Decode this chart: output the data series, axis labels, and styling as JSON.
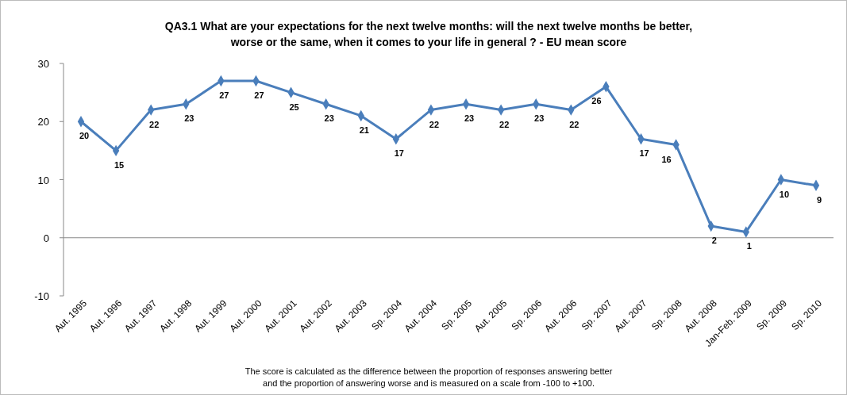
{
  "chart_data": {
    "type": "line",
    "title": "QA3.1  What are your expectations for the next twelve months: will the next twelve months be better, worse or the same, when it comes to your life in general ?  - EU mean score",
    "categories": [
      "Aut. 1995",
      "Aut. 1996",
      "Aut. 1997",
      "Aut. 1998",
      "Aut. 1999",
      "Aut. 2000",
      "Aut. 2001",
      "Aut. 2002",
      "Aut. 2003",
      "Sp. 2004",
      "Aut. 2004",
      "Sp. 2005",
      "Aut. 2005",
      "Sp. 2006",
      "Aut. 2006",
      "Sp. 2007",
      "Aut. 2007",
      "Sp. 2008",
      "Aut. 2008",
      "Jan-Feb. 2009",
      "Sp. 2009",
      "Sp. 2010"
    ],
    "series": [
      {
        "color": "#4a7ebb",
        "values": [
          20,
          15,
          22,
          23,
          27,
          27,
          25,
          23,
          21,
          17,
          22,
          23,
          22,
          23,
          22,
          26,
          17,
          16,
          2,
          1,
          10,
          9
        ]
      }
    ],
    "ylim": [
      -10,
      30
    ],
    "yticks": [
      -10,
      0,
      10,
      20,
      30
    ],
    "marker": "diamond",
    "line_style": "solid",
    "data_labels": true,
    "annotations": [
      "The score is calculated as the difference  between the proportion  of responses answering better",
      "and the proportion  of answering worse and is measured on a scale  from -100 to +100."
    ]
  }
}
